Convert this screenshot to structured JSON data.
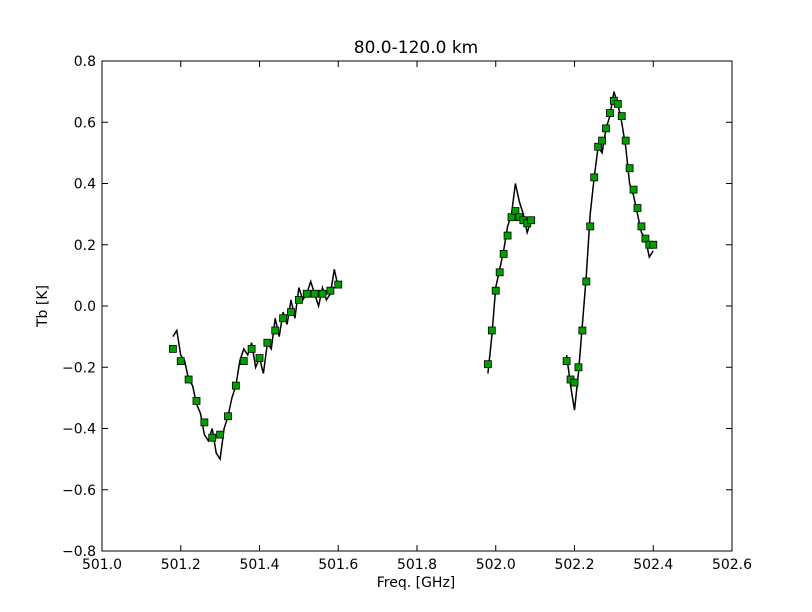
{
  "chart_data": {
    "type": "line",
    "title": "80.0-120.0 km",
    "xlabel": "Freq. [GHz]",
    "ylabel": "Tb [K]",
    "xlim": [
      501.0,
      502.6
    ],
    "ylim": [
      -0.8,
      0.8
    ],
    "x_ticks": [
      501.0,
      501.2,
      501.4,
      501.6,
      501.8,
      502.0,
      502.2,
      502.4,
      502.6
    ],
    "x_tick_labels": [
      "501.0",
      "501.2",
      "501.4",
      "501.6",
      "501.8",
      "502.0",
      "502.2",
      "502.4",
      "502.6"
    ],
    "y_ticks": [
      -0.8,
      -0.6,
      -0.4,
      -0.2,
      0.0,
      0.2,
      0.4,
      0.6,
      0.8
    ],
    "y_tick_labels": [
      "−0.8",
      "−0.6",
      "−0.4",
      "−0.2",
      "0.0",
      "0.2",
      "0.4",
      "0.6",
      "0.8"
    ],
    "grid": false,
    "legend": "none",
    "series": [
      {
        "style": "black noisy line (measurement)",
        "color": "#000000",
        "segments": [
          [
            [
              501.18,
              -0.1
            ],
            [
              501.19,
              -0.08
            ],
            [
              501.2,
              -0.16
            ],
            [
              501.21,
              -0.18
            ],
            [
              501.22,
              -0.24
            ],
            [
              501.23,
              -0.26
            ],
            [
              501.24,
              -0.32
            ],
            [
              501.25,
              -0.35
            ],
            [
              501.26,
              -0.42
            ],
            [
              501.27,
              -0.44
            ],
            [
              501.28,
              -0.4
            ],
            [
              501.29,
              -0.48
            ],
            [
              501.3,
              -0.5
            ],
            [
              501.31,
              -0.4
            ],
            [
              501.32,
              -0.36
            ],
            [
              501.33,
              -0.3
            ],
            [
              501.34,
              -0.26
            ],
            [
              501.35,
              -0.18
            ],
            [
              501.36,
              -0.14
            ],
            [
              501.37,
              -0.16
            ],
            [
              501.38,
              -0.12
            ],
            [
              501.39,
              -0.2
            ],
            [
              501.4,
              -0.17
            ],
            [
              501.41,
              -0.22
            ],
            [
              501.42,
              -0.12
            ],
            [
              501.43,
              -0.14
            ],
            [
              501.44,
              -0.04
            ],
            [
              501.45,
              -0.1
            ],
            [
              501.46,
              -0.02
            ],
            [
              501.47,
              -0.06
            ],
            [
              501.48,
              0.02
            ],
            [
              501.49,
              -0.04
            ],
            [
              501.5,
              0.06
            ],
            [
              501.51,
              0.02
            ],
            [
              501.52,
              0.04
            ],
            [
              501.53,
              0.08
            ],
            [
              501.54,
              0.04
            ],
            [
              501.55,
              0.0
            ],
            [
              501.56,
              0.06
            ],
            [
              501.57,
              0.02
            ],
            [
              501.58,
              0.04
            ],
            [
              501.59,
              0.12
            ],
            [
              501.6,
              0.06
            ]
          ],
          [
            [
              501.98,
              -0.22
            ],
            [
              501.99,
              -0.1
            ],
            [
              502.0,
              0.06
            ],
            [
              502.01,
              0.12
            ],
            [
              502.02,
              0.18
            ],
            [
              502.03,
              0.26
            ],
            [
              502.04,
              0.3
            ],
            [
              502.05,
              0.4
            ],
            [
              502.06,
              0.34
            ],
            [
              502.07,
              0.3
            ],
            [
              502.08,
              0.24
            ],
            [
              502.09,
              0.28
            ]
          ],
          [
            [
              502.18,
              -0.16
            ],
            [
              502.19,
              -0.26
            ],
            [
              502.2,
              -0.34
            ],
            [
              502.21,
              -0.22
            ],
            [
              502.22,
              -0.06
            ],
            [
              502.23,
              0.1
            ],
            [
              502.24,
              0.3
            ],
            [
              502.25,
              0.42
            ],
            [
              502.26,
              0.52
            ],
            [
              502.27,
              0.5
            ],
            [
              502.28,
              0.58
            ],
            [
              502.29,
              0.62
            ],
            [
              502.3,
              0.7
            ],
            [
              502.31,
              0.66
            ],
            [
              502.32,
              0.6
            ],
            [
              502.33,
              0.52
            ],
            [
              502.34,
              0.4
            ],
            [
              502.35,
              0.36
            ],
            [
              502.36,
              0.3
            ],
            [
              502.37,
              0.24
            ],
            [
              502.38,
              0.22
            ],
            [
              502.39,
              0.16
            ],
            [
              502.4,
              0.18
            ]
          ]
        ]
      },
      {
        "style": "green square markers (fit)",
        "color": "#00a000",
        "segments": [
          [
            [
              501.18,
              -0.14
            ],
            [
              501.2,
              -0.18
            ],
            [
              501.22,
              -0.24
            ],
            [
              501.24,
              -0.31
            ],
            [
              501.26,
              -0.38
            ],
            [
              501.28,
              -0.43
            ],
            [
              501.3,
              -0.42
            ],
            [
              501.32,
              -0.36
            ],
            [
              501.34,
              -0.26
            ],
            [
              501.36,
              -0.18
            ],
            [
              501.38,
              -0.14
            ],
            [
              501.4,
              -0.17
            ],
            [
              501.42,
              -0.12
            ],
            [
              501.44,
              -0.08
            ],
            [
              501.46,
              -0.04
            ],
            [
              501.48,
              -0.02
            ],
            [
              501.5,
              0.02
            ],
            [
              501.52,
              0.04
            ],
            [
              501.54,
              0.04
            ],
            [
              501.56,
              0.04
            ],
            [
              501.58,
              0.05
            ],
            [
              501.6,
              0.07
            ]
          ],
          [
            [
              501.98,
              -0.19
            ],
            [
              501.99,
              -0.08
            ],
            [
              502.0,
              0.05
            ],
            [
              502.01,
              0.11
            ],
            [
              502.02,
              0.17
            ],
            [
              502.03,
              0.23
            ],
            [
              502.04,
              0.29
            ],
            [
              502.05,
              0.31
            ],
            [
              502.06,
              0.29
            ],
            [
              502.07,
              0.28
            ],
            [
              502.08,
              0.27
            ],
            [
              502.09,
              0.28
            ]
          ],
          [
            [
              502.18,
              -0.18
            ],
            [
              502.19,
              -0.24
            ],
            [
              502.2,
              -0.25
            ],
            [
              502.21,
              -0.2
            ],
            [
              502.22,
              -0.08
            ],
            [
              502.23,
              0.08
            ],
            [
              502.24,
              0.26
            ],
            [
              502.25,
              0.42
            ],
            [
              502.26,
              0.52
            ],
            [
              502.27,
              0.54
            ],
            [
              502.28,
              0.58
            ],
            [
              502.29,
              0.63
            ],
            [
              502.3,
              0.67
            ],
            [
              502.31,
              0.66
            ],
            [
              502.32,
              0.62
            ],
            [
              502.33,
              0.54
            ],
            [
              502.34,
              0.45
            ],
            [
              502.35,
              0.38
            ],
            [
              502.36,
              0.32
            ],
            [
              502.37,
              0.26
            ],
            [
              502.38,
              0.22
            ],
            [
              502.39,
              0.2
            ],
            [
              502.4,
              0.2
            ]
          ]
        ]
      }
    ]
  }
}
